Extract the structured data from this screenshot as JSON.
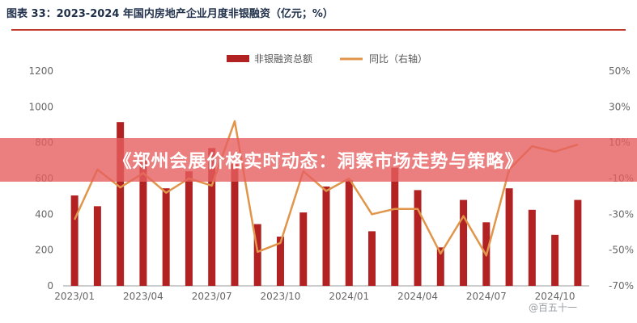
{
  "figure_title": "图表 33：2023-2024 年国内房地产企业月度非银融资（亿元；%）",
  "banner_text": "《郑州会展价格实时动态：洞察市场走势与策略》",
  "watermark": "@百五十一",
  "colors": {
    "bar": "#b22222",
    "line": "#e0954a",
    "title": "#1f2f4a",
    "rule": "#c0392b",
    "banner": "#e65f5f",
    "axis_text": "#666666"
  },
  "chart_data": {
    "type": "bar",
    "categories": [
      "2023/01",
      "2023/02",
      "2023/03",
      "2023/04",
      "2023/05",
      "2023/06",
      "2023/07",
      "2023/08",
      "2023/09",
      "2023/10",
      "2023/11",
      "2023/12",
      "2024/01",
      "2024/02",
      "2024/03",
      "2024/04",
      "2024/05",
      "2024/06",
      "2024/07",
      "2024/08",
      "2024/09",
      "2024/10",
      "2024/11"
    ],
    "x_tick_labels": [
      "2023/01",
      "2023/04",
      "2023/07",
      "2023/10",
      "2024/01",
      "2024/04",
      "2024/07",
      "2024/10"
    ],
    "series": [
      {
        "name": "非银融资总额",
        "type": "bar",
        "axis": "left",
        "values": [
          505,
          445,
          915,
          700,
          545,
          640,
          770,
          680,
          345,
          275,
          410,
          555,
          590,
          305,
          660,
          535,
          215,
          480,
          355,
          545,
          425,
          285,
          480
        ]
      },
      {
        "name": "同比（右轴）",
        "type": "line",
        "axis": "right",
        "values": [
          -33,
          -5,
          -15,
          -7,
          -18,
          -10,
          -14,
          22,
          -51,
          -46,
          -6,
          -17,
          -10,
          -30,
          -27,
          -27,
          -52,
          -31,
          -53,
          -5,
          8,
          5,
          9
        ]
      }
    ],
    "ylim_left": [
      0,
      1200
    ],
    "yticks_left": [
      0,
      200,
      400,
      600,
      800,
      1000,
      1200
    ],
    "ylim_right": [
      -70,
      50
    ],
    "yticks_right": [
      "-70%",
      "-50%",
      "-30%",
      "-10%",
      "10%",
      "30%",
      "50%"
    ],
    "legend_position": "top-center",
    "grid": false
  }
}
